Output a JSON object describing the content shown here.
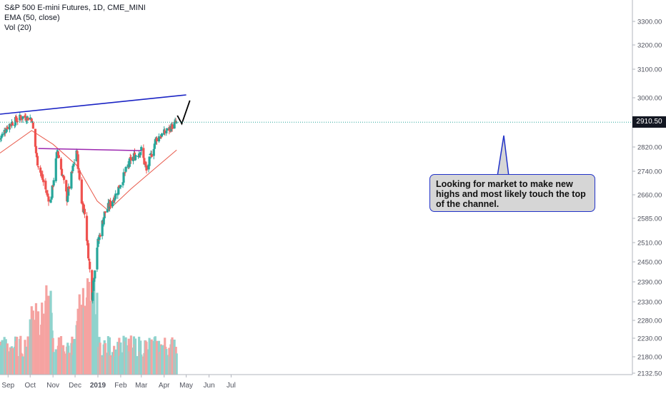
{
  "header": {
    "title": "S&P 500 E-mini Futures, 1D, CME_MINI",
    "indicator_ema": "EMA (50, close)",
    "indicator_vol": "Vol (20)"
  },
  "annotation": {
    "text": "Looking for market to make new highs and most likely touch the top of the channel."
  },
  "last_price": "2910.50",
  "colors": {
    "up": "#26a69a",
    "down": "#ef5350",
    "vol_up": "#8fd3cd",
    "vol_down": "#f5a3a1",
    "ema": "#e8594a",
    "channel": "#1a23c4",
    "resistance": "#9c27b0",
    "callout_border": "#2132c8",
    "callout_bg": "#d6d6d6"
  },
  "chart_data": {
    "type": "candlestick",
    "title": "S&P 500 E-mini Futures, 1D, CME_MINI",
    "x_axis_labels": [
      "Sep",
      "Oct",
      "Nov",
      "Dec",
      "2019",
      "Feb",
      "Mar",
      "Apr",
      "May",
      "Jun",
      "Jul"
    ],
    "y_axis_labels": [
      "3300.00",
      "3200.00",
      "3100.00",
      "3000.00",
      "2820.00",
      "2740.00",
      "2660.00",
      "2585.00",
      "2510.00",
      "2450.00",
      "2390.00",
      "2330.00",
      "2280.00",
      "2230.00",
      "2180.00",
      "2132.50"
    ],
    "last_price": 2910.5,
    "price_path": [
      {
        "date": "2018-08-21",
        "close": 2850
      },
      {
        "date": "2018-09-01",
        "close": 2900
      },
      {
        "date": "2018-09-20",
        "close": 2930
      },
      {
        "date": "2018-10-03",
        "close": 2925
      },
      {
        "date": "2018-10-10",
        "close": 2780
      },
      {
        "date": "2018-10-24",
        "close": 2660
      },
      {
        "date": "2018-10-29",
        "close": 2640
      },
      {
        "date": "2018-11-07",
        "close": 2810
      },
      {
        "date": "2018-11-20",
        "close": 2650
      },
      {
        "date": "2018-12-03",
        "close": 2810
      },
      {
        "date": "2018-12-10",
        "close": 2640
      },
      {
        "date": "2018-12-14",
        "close": 2600
      },
      {
        "date": "2018-12-24",
        "close": 2350
      },
      {
        "date": "2018-12-31",
        "close": 2500
      },
      {
        "date": "2019-01-10",
        "close": 2600
      },
      {
        "date": "2019-01-25",
        "close": 2660
      },
      {
        "date": "2019-02-15",
        "close": 2780
      },
      {
        "date": "2019-03-01",
        "close": 2810
      },
      {
        "date": "2019-03-08",
        "close": 2740
      },
      {
        "date": "2019-03-21",
        "close": 2850
      },
      {
        "date": "2019-04-01",
        "close": 2870
      },
      {
        "date": "2019-04-18",
        "close": 2910.5
      }
    ],
    "ema_path": [
      {
        "date": "2018-08-21",
        "value": 2800
      },
      {
        "date": "2018-10-03",
        "value": 2880
      },
      {
        "date": "2018-11-01",
        "value": 2830
      },
      {
        "date": "2018-12-03",
        "value": 2760
      },
      {
        "date": "2018-12-31",
        "value": 2640
      },
      {
        "date": "2019-01-15",
        "value": 2610
      },
      {
        "date": "2019-02-15",
        "value": 2680
      },
      {
        "date": "2019-03-15",
        "value": 2740
      },
      {
        "date": "2019-04-18",
        "value": 2810
      }
    ],
    "drawings": {
      "channel_top": [
        {
          "date": "2018-08-21",
          "price": 2940
        },
        {
          "date": "2019-05-01",
          "price": 3010
        }
      ],
      "resistance": [
        {
          "date": "2018-10-12",
          "price": 2815
        },
        {
          "date": "2019-03-01",
          "price": 2808
        }
      ],
      "projection": [
        {
          "date": "2019-04-19",
          "price": 2935
        },
        {
          "date": "2019-04-25",
          "price": 2905
        },
        {
          "date": "2019-05-06",
          "price": 2990
        }
      ]
    }
  }
}
